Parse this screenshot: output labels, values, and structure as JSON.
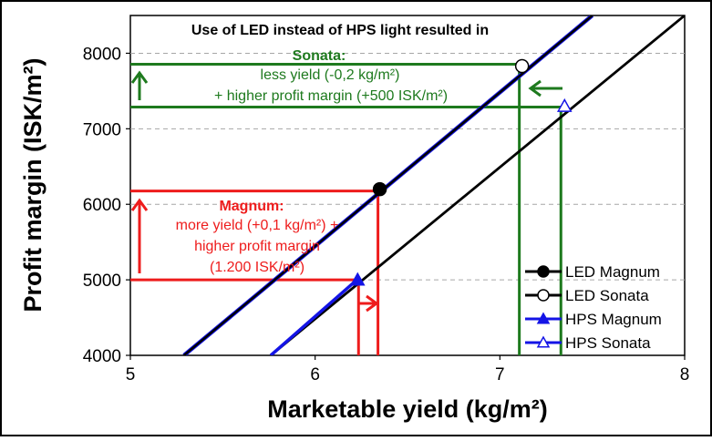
{
  "chart_data": {
    "type": "line",
    "xlabel": "Marketable yield (kg/m²)",
    "ylabel": "Profit margin (ISK/m²)",
    "xlim": [
      5,
      8
    ],
    "ylim": [
      4000,
      8500
    ],
    "xticks": [
      5,
      6,
      7,
      8
    ],
    "yticks": [
      4000,
      5000,
      6000,
      7000,
      8000
    ],
    "grid": "horizontal dashed",
    "legend_position": "bottom-right",
    "series": [
      {
        "name": "LED Magnum",
        "marker": "filled-circle",
        "color": "#000000",
        "line_x": [
          5.29,
          7.5
        ],
        "line_y": [
          4000,
          8500
        ],
        "point": [
          6.35,
          6200
        ]
      },
      {
        "name": "LED Sonata",
        "marker": "open-circle",
        "color": "#000000",
        "line_x": [
          5.29,
          7.5
        ],
        "line_y": [
          4000,
          8500
        ],
        "point": [
          7.12,
          7830
        ]
      },
      {
        "name": "HPS Magnum",
        "marker": "filled-triangle",
        "color": "#1414e6",
        "line_x": [
          5.76,
          8.0
        ],
        "line_y": [
          4000,
          8500
        ],
        "point": [
          6.23,
          5000
        ]
      },
      {
        "name": "HPS Sonata",
        "marker": "open-triangle",
        "color": "#1414e6",
        "line_x": [
          5.76,
          8.0
        ],
        "line_y": [
          4000,
          8500
        ],
        "point": [
          7.35,
          7300
        ]
      }
    ],
    "annotations": {
      "heading": "Use of LED instead of HPS light resulted in",
      "sonata": {
        "title": "Sonata:",
        "line1": "less yield (-0,2 kg/m²)",
        "line2": "+ higher profit margin (+500 ISK/m²)",
        "color": "#1e7a1e"
      },
      "magnum": {
        "title": "Magnum:",
        "line1": "more yield (+0,1 kg/m²) +",
        "line2": "higher profit margin",
        "line3": "(1.200 ISK/m²)",
        "color": "#ee1c1c"
      }
    }
  }
}
